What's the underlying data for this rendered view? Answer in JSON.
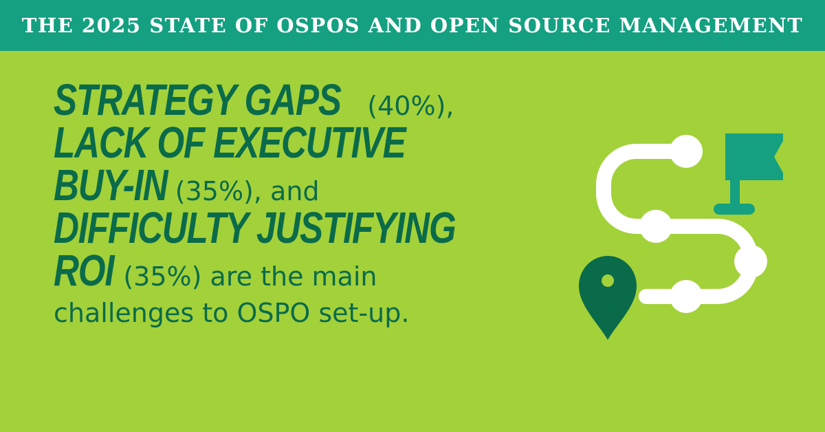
{
  "banner": {
    "title": "THE 2025 STATE OF OSPOS AND OPEN SOURCE MANAGEMENT"
  },
  "headline": {
    "line1_em": "STRATEGY GAPS",
    "line1_rest": " (40%),",
    "line2_em": "LACK OF EXECUTIVE",
    "line3_em": "BUY-IN",
    "line3_rest": " (35%), and",
    "line4_em": "DIFFICULTY JUSTIFYING",
    "line5_em": "ROI",
    "line5_rest": " (35%) are the main",
    "line6_rest": "challenges to OSPO set-up."
  },
  "colors": {
    "background": "#a3d13a",
    "banner": "#14a081",
    "text": "#0a6b4a",
    "flag": "#14a081",
    "pin": "#0a6b4a",
    "path": "#ffffff"
  },
  "icons": [
    "roadmap-path-icon",
    "flag-icon",
    "map-pin-icon"
  ]
}
